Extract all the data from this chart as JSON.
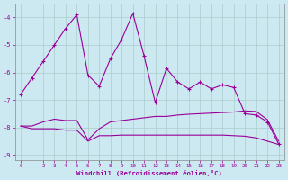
{
  "x": [
    0,
    1,
    2,
    3,
    4,
    5,
    6,
    7,
    8,
    9,
    10,
    11,
    12,
    13,
    14,
    15,
    16,
    17,
    18,
    19,
    20,
    21,
    22,
    23
  ],
  "y_main": [
    -6.8,
    -6.2,
    -5.6,
    -5.0,
    -4.4,
    -3.9,
    -6.1,
    -6.5,
    -5.5,
    -4.8,
    -3.85,
    -5.4,
    -7.1,
    -5.85,
    -6.35,
    -6.6,
    -6.35,
    -6.6,
    -6.45,
    -6.55,
    -7.5,
    -7.55,
    -7.8,
    -8.6
  ],
  "y_upper": [
    -7.95,
    -7.95,
    -7.8,
    -7.7,
    -7.75,
    -7.75,
    -8.45,
    -8.05,
    -7.8,
    -7.75,
    -7.7,
    -7.65,
    -7.6,
    -7.6,
    -7.55,
    -7.52,
    -7.5,
    -7.48,
    -7.46,
    -7.44,
    -7.4,
    -7.42,
    -7.72,
    -8.5
  ],
  "y_lower": [
    -7.95,
    -8.05,
    -8.05,
    -8.05,
    -8.1,
    -8.1,
    -8.5,
    -8.3,
    -8.3,
    -8.28,
    -8.28,
    -8.28,
    -8.28,
    -8.28,
    -8.28,
    -8.28,
    -8.28,
    -8.28,
    -8.28,
    -8.3,
    -8.32,
    -8.38,
    -8.5,
    -8.62
  ],
  "line_color": "#990099",
  "bg_color": "#cce8f0",
  "grid_color": "#aacccc",
  "xlabel": "Windchill (Refroidissement éolien,°C)",
  "ylim": [
    -9.2,
    -3.5
  ],
  "xlim": [
    -0.5,
    23.5
  ],
  "yticks": [
    -9,
    -8,
    -7,
    -6,
    -5,
    -4
  ],
  "xticks": [
    0,
    2,
    3,
    4,
    5,
    6,
    7,
    8,
    9,
    10,
    11,
    12,
    13,
    14,
    15,
    16,
    17,
    18,
    19,
    20,
    21,
    22,
    23
  ]
}
